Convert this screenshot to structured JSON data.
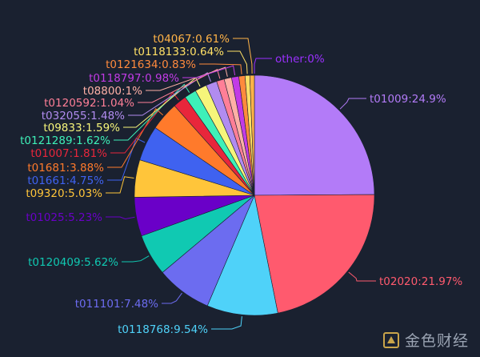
{
  "chart_data": {
    "type": "pie",
    "slices": [
      {
        "label": "t01009:24.9%",
        "value": 24.9,
        "color": "#b37bf8"
      },
      {
        "label": "t02020:21.97%",
        "value": 21.97,
        "color": "#ff5a6e"
      },
      {
        "label": "t0118768:9.54%",
        "value": 9.54,
        "color": "#4fd2f9"
      },
      {
        "label": "t011101:7.48%",
        "value": 7.48,
        "color": "#6c6cf0"
      },
      {
        "label": "t0120409:5.62%",
        "value": 5.62,
        "color": "#10c9b2"
      },
      {
        "label": "t01025:5.23%",
        "value": 5.23,
        "color": "#6a00c8"
      },
      {
        "label": "t09320:5.03%",
        "value": 5.03,
        "color": "#ffc53a"
      },
      {
        "label": "t01661:4.75%",
        "value": 4.75,
        "color": "#3f62f0"
      },
      {
        "label": "t01681:3.88%",
        "value": 3.88,
        "color": "#ff7a2b"
      },
      {
        "label": "t01007:1.81%",
        "value": 1.81,
        "color": "#e8263b"
      },
      {
        "label": "t0121289:1.62%",
        "value": 1.62,
        "color": "#3ef0b8"
      },
      {
        "label": "t09833:1.59%",
        "value": 1.59,
        "color": "#f6f57a"
      },
      {
        "label": "t032055:1.48%",
        "value": 1.48,
        "color": "#b18cf0"
      },
      {
        "label": "t0120592:1.04%",
        "value": 1.04,
        "color": "#ff7f97"
      },
      {
        "label": "t08800:1%",
        "value": 1.0,
        "color": "#ffb0a6"
      },
      {
        "label": "t0118797:0.98%",
        "value": 0.98,
        "color": "#c23be6"
      },
      {
        "label": "t0121634:0.83%",
        "value": 0.83,
        "color": "#ff8a3d"
      },
      {
        "label": "t0118133:0.64%",
        "value": 0.64,
        "color": "#ffe066"
      },
      {
        "label": "t04067:0.61%",
        "value": 0.61,
        "color": "#ffb347"
      },
      {
        "label": "other:0%",
        "value": 0,
        "color": "#9b30ff"
      }
    ],
    "legend": "none",
    "labels": "outside-with-leader-lines"
  },
  "watermark": {
    "text": "金色财经"
  }
}
